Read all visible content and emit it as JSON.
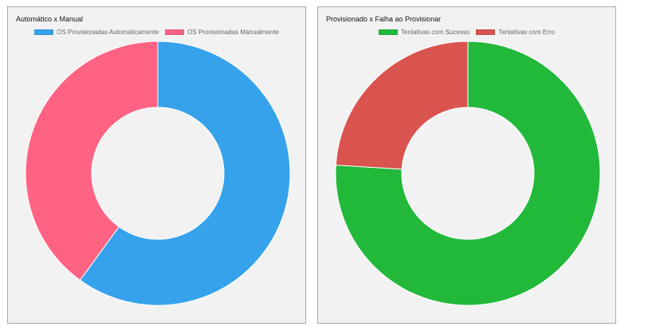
{
  "chart_data": [
    {
      "type": "doughnut",
      "title": "Automático x Manual",
      "legend_position": "top",
      "categories": [
        "OS Provisionadas Automaticamente",
        "OS Provisionadas Manualmente"
      ],
      "values": [
        60,
        40
      ],
      "colors": [
        "#36A2EB",
        "#FF6384"
      ]
    },
    {
      "type": "doughnut",
      "title": "Provisionado x Falha ao Provisionar",
      "legend_position": "top",
      "categories": [
        "Tentativas com Sucesso",
        "Tentativas com Erro"
      ],
      "values": [
        76,
        24
      ],
      "colors": [
        "#22B83A",
        "#D9534F"
      ]
    }
  ]
}
